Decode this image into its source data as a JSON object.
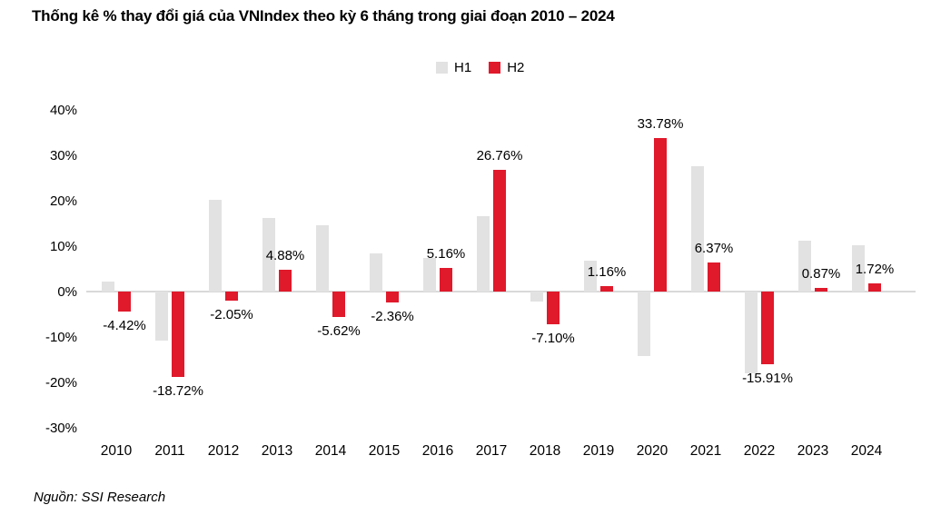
{
  "title": "Thống kê % thay đổi giá của VNIndex theo kỳ 6 tháng trong giai đoạn 2010 – 2024",
  "source": "Nguồn: SSI Research",
  "legend": {
    "h1": "H1",
    "h2": "H2"
  },
  "colors": {
    "h1_bar": "#e2e2e2",
    "h2_bar": "#e0192b",
    "axis_line": "#d9d9d9",
    "text": "#000000"
  },
  "chart_data": {
    "type": "bar",
    "title": "Thống kê % thay đổi giá của VNIndex theo kỳ 6 tháng trong giai đoạn 2010 – 2024",
    "categories": [
      "2010",
      "2011",
      "2012",
      "2013",
      "2014",
      "2015",
      "2016",
      "2017",
      "2018",
      "2019",
      "2020",
      "2021",
      "2022",
      "2023",
      "2024"
    ],
    "series": [
      {
        "name": "H1",
        "color": "#e2e2e2",
        "values": [
          2.3,
          -10.8,
          20.2,
          16.2,
          14.6,
          8.5,
          7.4,
          16.7,
          -2.2,
          6.8,
          -14.2,
          27.7,
          -18.0,
          11.3,
          10.2
        ],
        "data_labels": [
          "",
          "",
          "",
          "",
          "",
          "",
          "",
          "",
          "",
          "",
          "",
          "",
          "",
          "",
          ""
        ]
      },
      {
        "name": "H2",
        "color": "#e0192b",
        "values": [
          -4.42,
          -18.72,
          -2.05,
          4.88,
          -5.62,
          -2.36,
          5.16,
          26.76,
          -7.1,
          1.16,
          33.78,
          6.37,
          -15.91,
          0.87,
          1.72
        ],
        "data_labels": [
          "-4.42%",
          "-18.72%",
          "-2.05%",
          "4.88%",
          "-5.62%",
          "-2.36%",
          "5.16%",
          "26.76%",
          "-7.10%",
          "1.16%",
          "33.78%",
          "6.37%",
          "-15.91%",
          "0.87%",
          "1.72%"
        ]
      }
    ],
    "xlabel": "",
    "ylabel": "",
    "ylim": [
      -30,
      40
    ],
    "ytick_step": 10,
    "ytick_labels": [
      "40%",
      "30%",
      "20%",
      "10%",
      "0%",
      "-10%",
      "-20%",
      "-30%"
    ],
    "grid": false,
    "legend_position": "top-center",
    "data_label_series": "H2"
  }
}
